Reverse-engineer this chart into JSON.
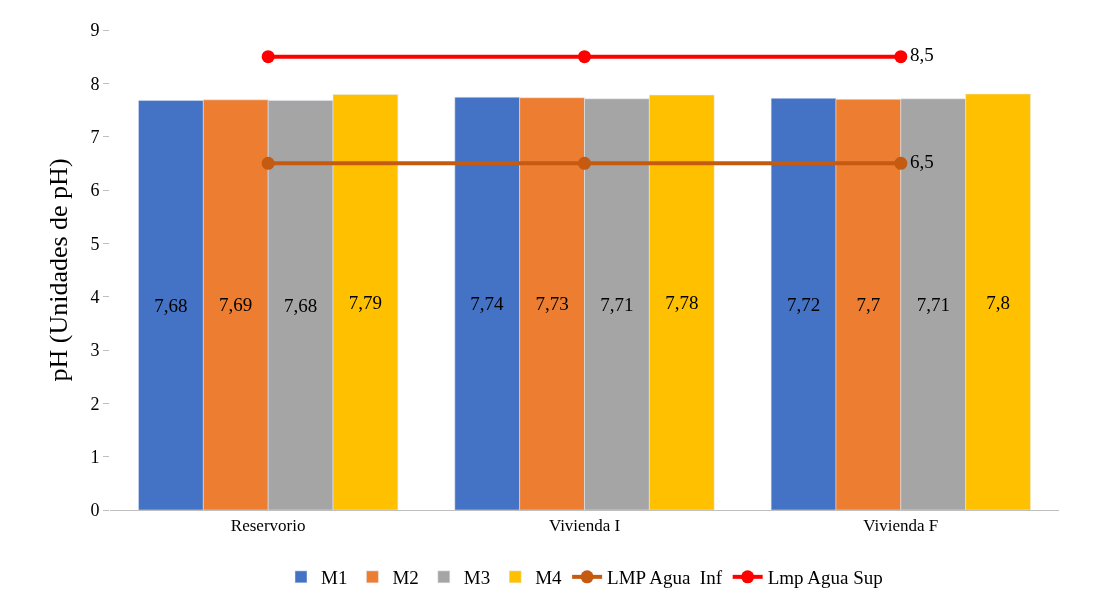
{
  "chart_data": {
    "type": "bar",
    "ylabel": "pH (Unidades de pH)",
    "categories": [
      "Reservorio",
      "Vivienda I",
      "Vivienda F"
    ],
    "ylim": [
      0,
      9
    ],
    "yticks": [
      0,
      1,
      2,
      3,
      4,
      5,
      6,
      7,
      8,
      9
    ],
    "grid": false,
    "legend": "bottom",
    "marker": "circle",
    "series": [
      {
        "name": "M1",
        "color": "#4472c4",
        "values": [
          7.68,
          7.74,
          7.72
        ],
        "value_labels": [
          "7,68",
          "7,74",
          "7,72"
        ]
      },
      {
        "name": "M2",
        "color": "#ed7d31",
        "values": [
          7.69,
          7.73,
          7.7
        ],
        "value_labels": [
          "7,69",
          "7,73",
          "7,7"
        ]
      },
      {
        "name": "M3",
        "color": "#a5a5a5",
        "values": [
          7.68,
          7.71,
          7.71
        ],
        "value_labels": [
          "7,68",
          "7,71",
          "7,71"
        ]
      },
      {
        "name": "M4",
        "color": "#ffc000",
        "values": [
          7.79,
          7.78,
          7.8
        ],
        "value_labels": [
          "7,79",
          "7,78",
          "7,8"
        ]
      },
      {
        "name": "LMP Agua  Inf",
        "type": "line",
        "color": "#c55a11",
        "values": [
          6.5,
          6.5,
          6.5
        ],
        "value_labels": [
          null,
          null,
          "6,5"
        ]
      },
      {
        "name": "Lmp Agua Sup",
        "type": "line",
        "color": "#ff0000",
        "values": [
          8.5,
          8.5,
          8.5
        ],
        "value_labels": [
          null,
          null,
          "8,5"
        ]
      }
    ]
  }
}
